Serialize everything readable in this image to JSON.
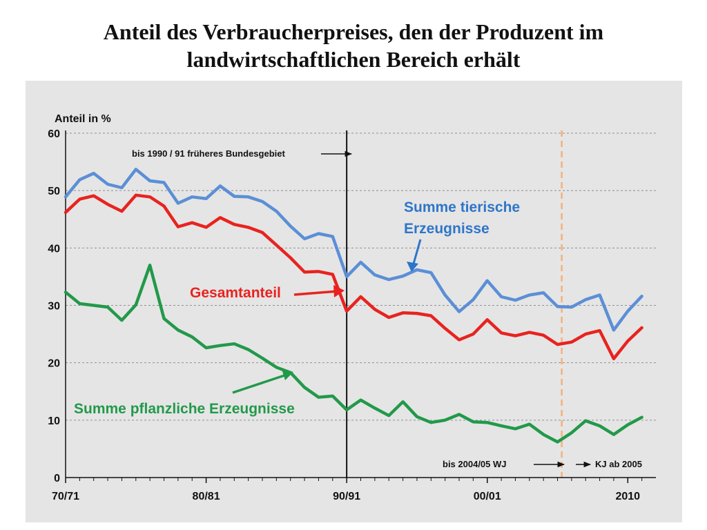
{
  "title": {
    "line1": "Anteil des Verbraucherpreises, den der Produzent im",
    "line2": "landwirtschaftlichen Bereich erhält"
  },
  "colors": {
    "blue": "#5b8fd6",
    "red": "#e8231f",
    "green": "#22994a",
    "blue_label": "#2e75c9",
    "grid": "#8f8f8f",
    "divider": "#111111",
    "dashed": "#f5b07a"
  },
  "chart_data": {
    "type": "line",
    "ylabel": "Anteil in %",
    "ylim": [
      0,
      60
    ],
    "yticks": [
      0,
      10,
      20,
      30,
      40,
      50,
      60
    ],
    "xlim": [
      1970,
      2012
    ],
    "xticks": [
      {
        "value": 1970,
        "label": "70/71"
      },
      {
        "value": 1980,
        "label": "80/81"
      },
      {
        "value": 1990,
        "label": "90/91"
      },
      {
        "value": 2000,
        "label": "00/01"
      },
      {
        "value": 2010,
        "label": "2010"
      }
    ],
    "x": [
      1970,
      1971,
      1972,
      1973,
      1974,
      1975,
      1976,
      1977,
      1978,
      1979,
      1980,
      1981,
      1982,
      1983,
      1984,
      1985,
      1986,
      1987,
      1988,
      1989,
      1990,
      1991,
      1992,
      1993,
      1994,
      1995,
      1996,
      1997,
      1998,
      1999,
      2000,
      2001,
      2002,
      2003,
      2004,
      2005,
      2006,
      2007,
      2008,
      2009,
      2010,
      2011
    ],
    "series": [
      {
        "name": "Summe tierische Erzeugnisse",
        "color": "#5b8fd6",
        "values": [
          48.9,
          51.9,
          53.0,
          51.1,
          50.5,
          53.7,
          51.7,
          51.4,
          47.8,
          48.9,
          48.6,
          50.8,
          49.0,
          48.9,
          48.1,
          46.4,
          43.8,
          41.6,
          42.5,
          42.0,
          35.0,
          37.5,
          35.3,
          34.5,
          35.1,
          36.2,
          35.7,
          31.8,
          28.9,
          31.0,
          34.3,
          31.5,
          30.9,
          31.8,
          32.2,
          29.8,
          29.7,
          31.0,
          31.8,
          25.7,
          29.0,
          31.6
        ]
      },
      {
        "name": "Gesamtanteil",
        "color": "#e8231f",
        "values": [
          46.2,
          48.5,
          49.1,
          47.6,
          46.4,
          49.2,
          48.9,
          47.3,
          43.7,
          44.4,
          43.6,
          45.3,
          44.1,
          43.6,
          42.7,
          40.5,
          38.3,
          35.8,
          35.9,
          35.4,
          29.0,
          31.5,
          29.3,
          27.9,
          28.7,
          28.6,
          28.2,
          26.0,
          24.0,
          25.0,
          27.5,
          25.2,
          24.7,
          25.3,
          24.8,
          23.2,
          23.6,
          25.0,
          25.6,
          20.7,
          23.8,
          26.1
        ]
      },
      {
        "name": "Summe pflanzliche Erzeugnisse",
        "color": "#22994a",
        "values": [
          32.3,
          30.3,
          30.0,
          29.7,
          27.4,
          30.1,
          37.0,
          27.7,
          25.7,
          24.5,
          22.6,
          23.0,
          23.3,
          22.3,
          20.8,
          19.2,
          18.3,
          15.7,
          14.0,
          14.2,
          11.8,
          13.5,
          12.1,
          10.8,
          13.2,
          10.6,
          9.6,
          10.0,
          11.0,
          9.7,
          9.6,
          9.0,
          8.5,
          9.3,
          7.5,
          6.2,
          7.8,
          9.9,
          9.0,
          7.5,
          9.2,
          10.5
        ]
      }
    ],
    "labels": {
      "tierisch_line1": "Summe tierische",
      "tierisch_line2": "Erzeugnisse",
      "gesamt": "Gesamtanteil",
      "pflanzlich": "Summe pflanzliche Erzeugnisse"
    },
    "annotations": {
      "bundesgebiet": "bis 1990 / 91 früheres Bundesgebiet",
      "wj": "bis 2004/05  WJ",
      "kj": "KJ  ab 2005",
      "divider_solid_x": 1990,
      "divider_dashed_x": 2005.3
    }
  }
}
